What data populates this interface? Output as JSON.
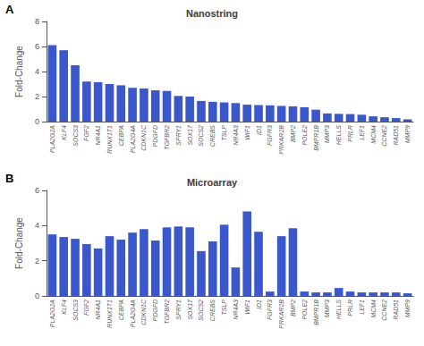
{
  "chart_data": [
    {
      "type": "bar",
      "title": "Nanostring",
      "ylabel": "Fold-Change",
      "annotations": [
        "A"
      ],
      "categories": [
        "PLA2G2A",
        "KLF4",
        "SOCS3",
        "FGF2",
        "NR4A1",
        "RUNX1T1",
        "CEBPA",
        "PLA2G4A",
        "CDKN1C",
        "PDGFD",
        "TGFBR2",
        "SPRY1",
        "SOX17",
        "SOCS2",
        "CREBS",
        "TSLP",
        "NR4A3",
        "WIF1",
        "ID1",
        "FGFR3",
        "PRKAR2B",
        "BMP2",
        "POLE2",
        "BMPR1B",
        "MMP3",
        "HELLS",
        "PRLR",
        "LEF1",
        "MCM4",
        "CCNE2",
        "RAD51",
        "MMP9"
      ],
      "values": [
        6.1,
        5.7,
        4.5,
        3.2,
        3.15,
        3.0,
        2.9,
        2.7,
        2.65,
        2.5,
        2.45,
        2.05,
        2.0,
        1.65,
        1.58,
        1.53,
        1.48,
        1.35,
        1.32,
        1.3,
        1.25,
        1.22,
        1.15,
        0.95,
        0.65,
        0.62,
        0.6,
        0.55,
        0.42,
        0.35,
        0.28,
        0.18
      ],
      "color": "#3a57cc",
      "ylim": [
        0,
        8
      ],
      "yticks": [
        0,
        2,
        4,
        6,
        8
      ],
      "grid": false
    },
    {
      "type": "bar",
      "title": "Microarray",
      "ylabel": "Fold-Change",
      "annotations": [
        "B"
      ],
      "categories": [
        "PLA2G2A",
        "KLF4",
        "SOCS3",
        "FGF2",
        "NR4A1",
        "RUNX1T1",
        "CEBPA",
        "PLA2G4A",
        "CDKN1C",
        "PDGFD",
        "TGFBR2",
        "SPRY1",
        "SOX17",
        "SOCS2",
        "CREBS",
        "TSLP",
        "NR4A3",
        "WIF1",
        "ID1",
        "FGFR3",
        "PRKAR2B",
        "BMP2",
        "POLE2",
        "BMPR1B",
        "MMP3",
        "HELLS",
        "PRLR",
        "LEF1",
        "MCM4",
        "CCNE2",
        "RAD51",
        "MMP9"
      ],
      "values": [
        3.5,
        3.35,
        3.25,
        2.95,
        2.7,
        3.4,
        3.2,
        3.6,
        3.8,
        3.15,
        3.9,
        3.95,
        3.9,
        2.55,
        3.1,
        4.05,
        1.62,
        4.8,
        3.65,
        0.25,
        3.4,
        3.85,
        0.25,
        0.2,
        0.2,
        0.45,
        0.25,
        0.2,
        0.2,
        0.2,
        0.2,
        0.15
      ],
      "color": "#3a57cc",
      "ylim": [
        0,
        6
      ],
      "yticks": [
        0,
        2,
        4,
        6
      ],
      "grid": false
    }
  ]
}
